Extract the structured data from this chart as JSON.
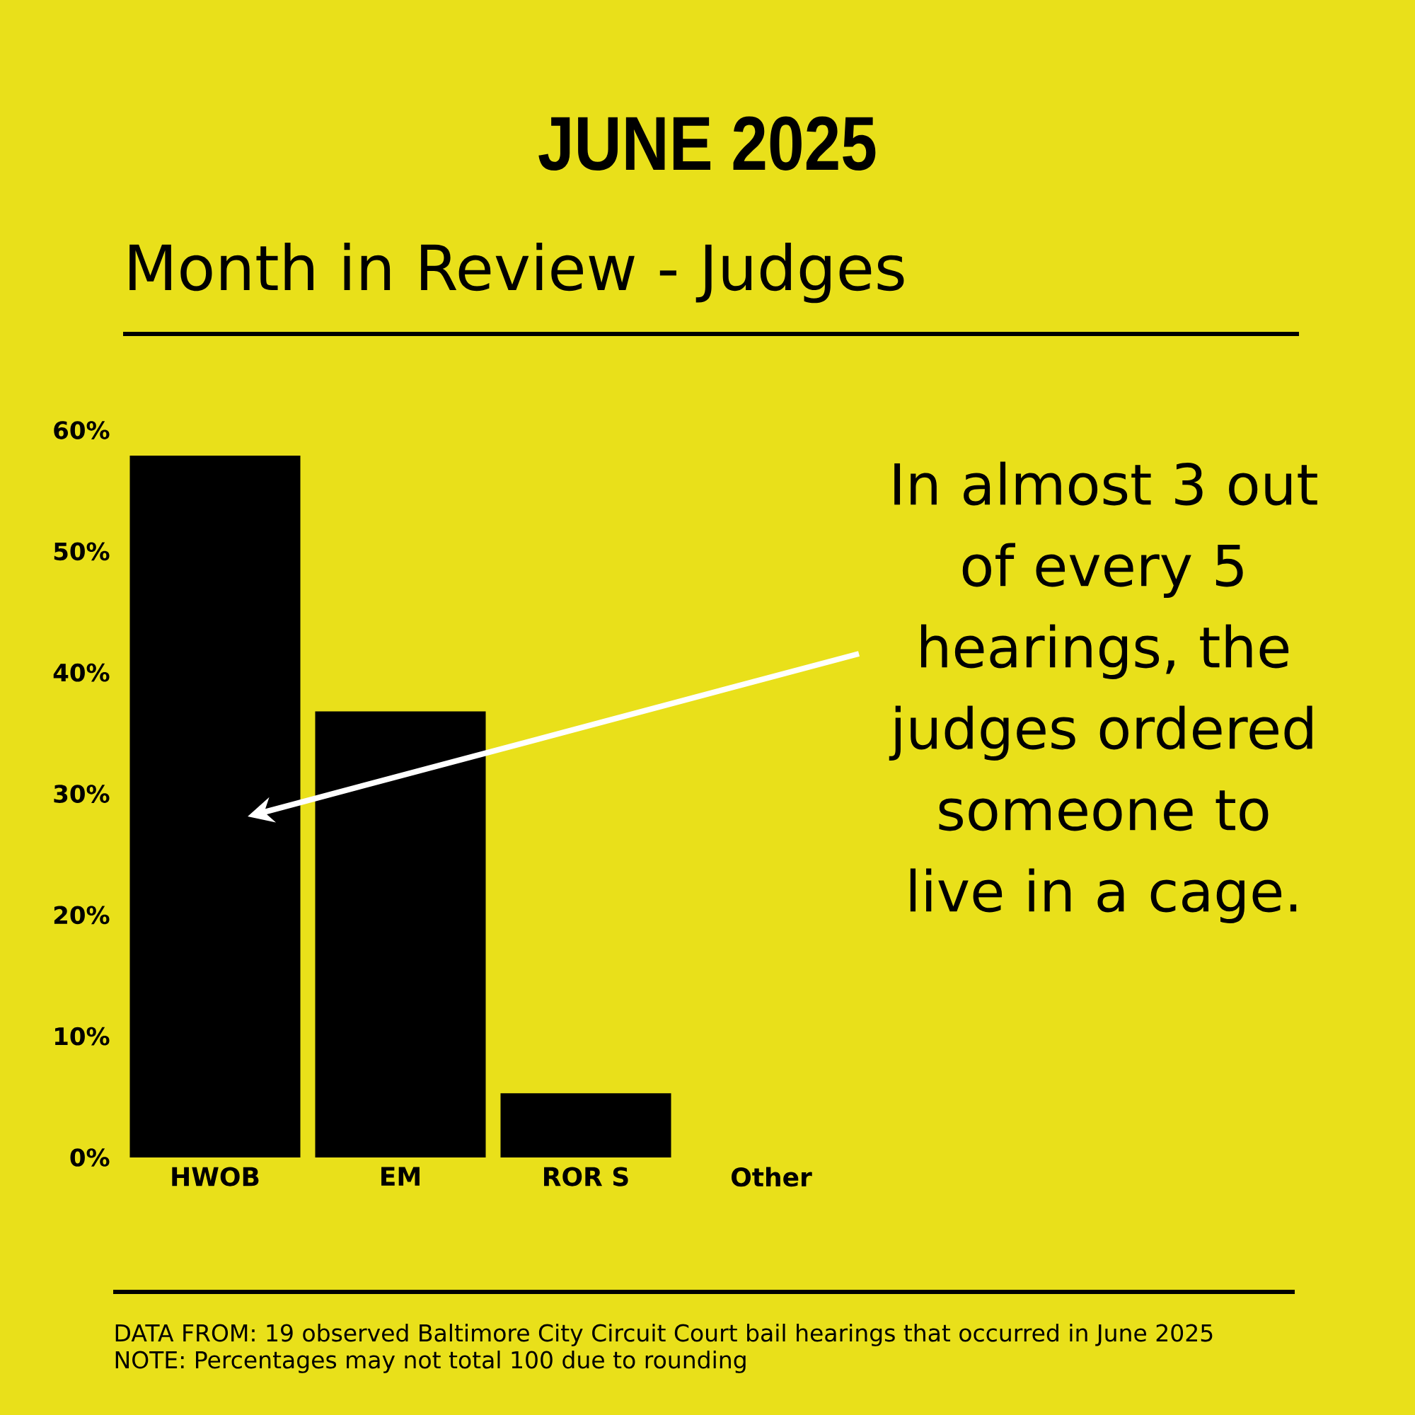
{
  "chart_data": {
    "type": "bar",
    "title": "JUNE 2025",
    "subtitle": "Month in Review - Judges",
    "categories": [
      "HWOB",
      "EM",
      "ROR S",
      "Other"
    ],
    "values": [
      57.9,
      36.8,
      5.3,
      0
    ],
    "color": "#000000",
    "ylim": [
      0,
      60
    ],
    "yticks": [
      {
        "value": 0,
        "label": "0%"
      },
      {
        "value": 10,
        "label": "10%"
      },
      {
        "value": 20,
        "label": "20%"
      },
      {
        "value": 30,
        "label": "30%"
      },
      {
        "value": 40,
        "label": "40%"
      },
      {
        "value": 50,
        "label": "50%"
      },
      {
        "value": 60,
        "label": "60%"
      }
    ],
    "annotations": [
      "In almost 3 out of every 5 hearings, the judges ordered someone to live in a cage.",
      "DATA FROM: 19 observed Baltimore City Circuit Court bail hearings that occurred in June 2025",
      "NOTE: Percentages may not total 100 due to rounding"
    ]
  }
}
